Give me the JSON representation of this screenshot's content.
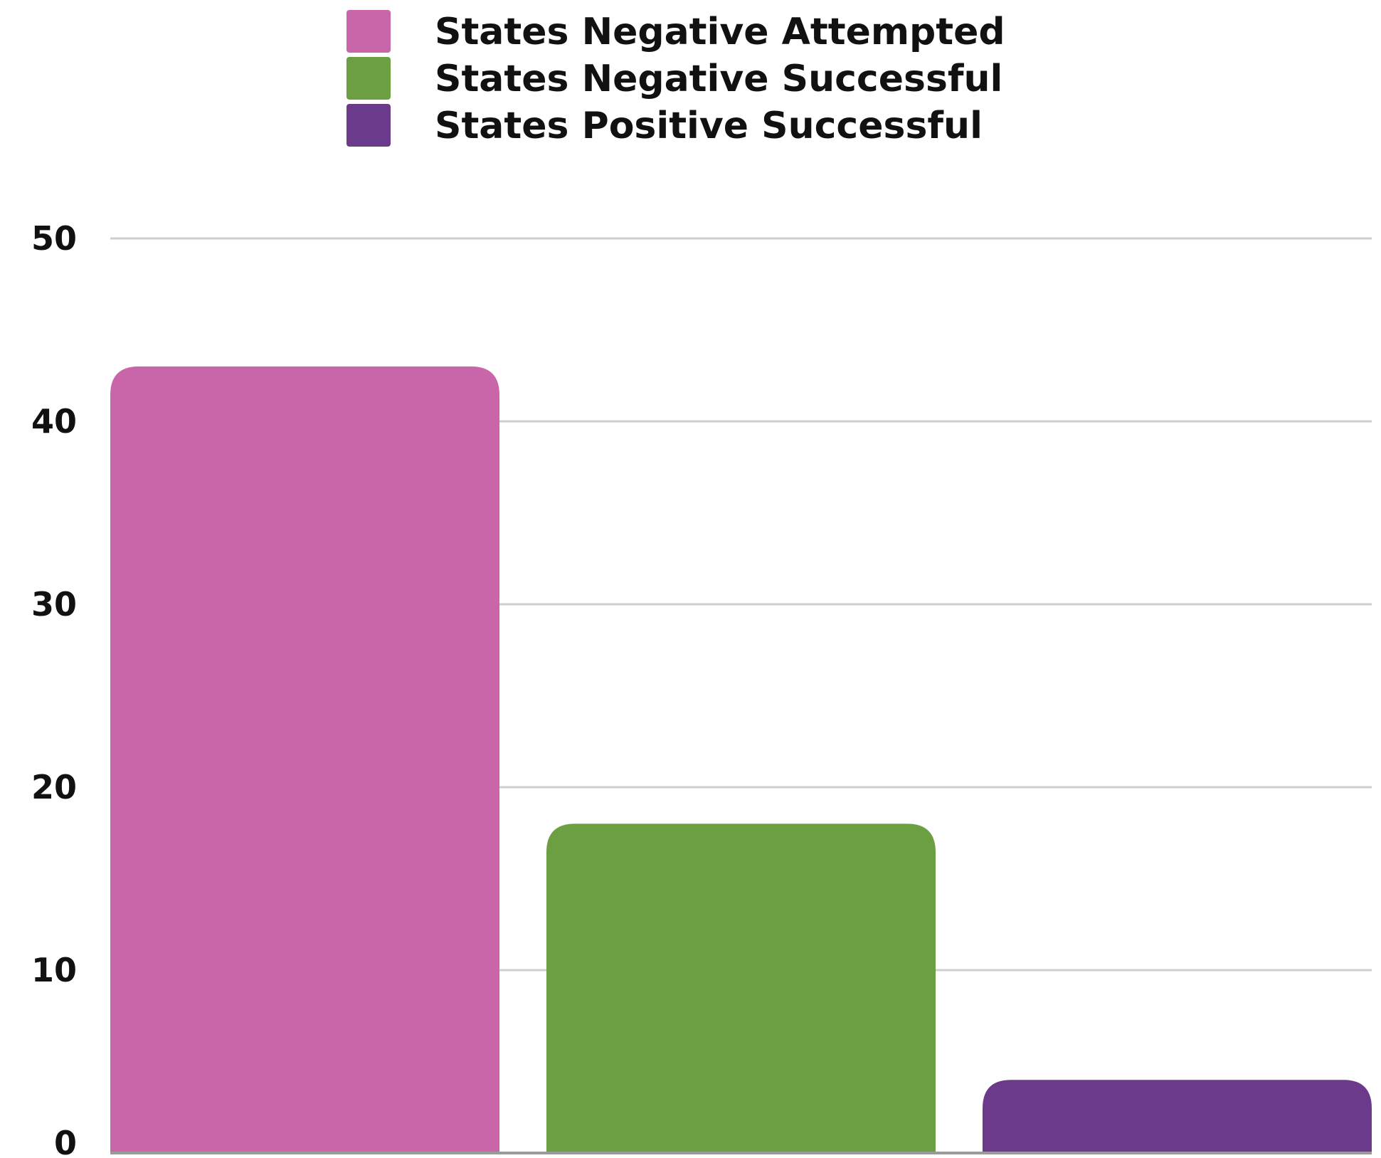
{
  "chart_data": {
    "type": "bar",
    "categories": [
      "States Negative Attempted",
      "States Negative Successful",
      "States Positive Successful"
    ],
    "values": [
      43,
      18,
      4
    ],
    "colors": [
      "#c966aa",
      "#6c9f42",
      "#6c3a8a"
    ],
    "ylim": [
      0,
      50
    ],
    "yticks": [
      "0",
      "10",
      "20",
      "30",
      "40",
      "50"
    ],
    "grid": true,
    "legend": {
      "placement": "top-center",
      "entries": [
        {
          "label": "States Negative Attempted",
          "color": "#c966aa"
        },
        {
          "label": "States Negative Successful",
          "color": "#6c9f42"
        },
        {
          "label": "States Positive Successful",
          "color": "#6c3a8a"
        }
      ]
    }
  }
}
